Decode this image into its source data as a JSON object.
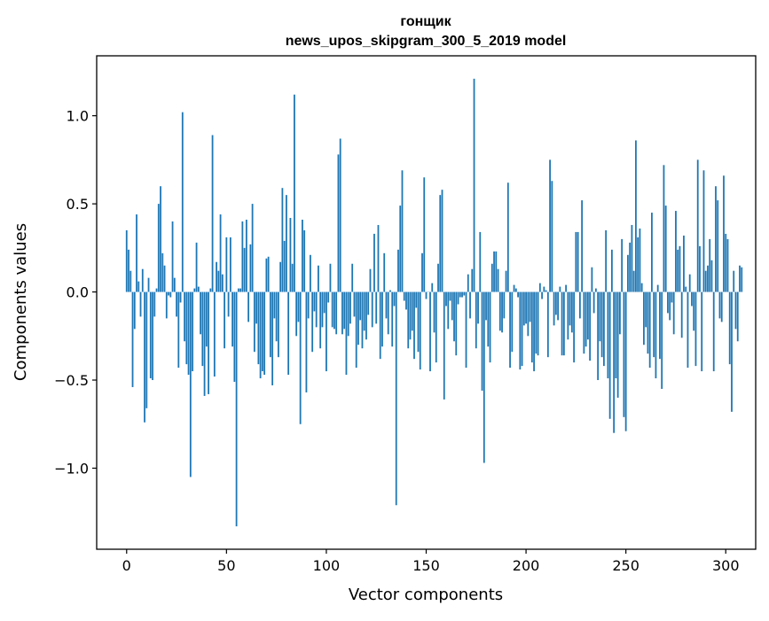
{
  "chart_data": {
    "type": "bar",
    "title_lines": [
      "гонщик",
      "news_upos_skipgram_300_5_2019 model"
    ],
    "xlabel": "Vector components",
    "ylabel": "Components values",
    "xlim": [
      -15,
      315
    ],
    "ylim": [
      -1.46,
      1.34
    ],
    "xticks": [
      0,
      50,
      100,
      150,
      200,
      250,
      300
    ],
    "xtick_labels": [
      "0",
      "50",
      "100",
      "150",
      "200",
      "250",
      "300"
    ],
    "yticks": [
      -1.0,
      -0.5,
      0.0,
      0.5,
      1.0
    ],
    "ytick_labels": [
      "−1.0",
      "−0.5",
      "0.0",
      "0.5",
      "1.0"
    ],
    "grid": false,
    "legend": "none",
    "bar_color": "#1f77b4",
    "values": [
      0.35,
      0.24,
      0.12,
      -0.54,
      -0.21,
      0.44,
      0.06,
      -0.14,
      0.13,
      -0.74,
      -0.66,
      0.08,
      -0.49,
      -0.5,
      -0.14,
      0.02,
      0.5,
      0.6,
      0.22,
      0.15,
      -0.15,
      -0.02,
      -0.03,
      0.4,
      0.08,
      -0.14,
      -0.43,
      -0.06,
      1.02,
      -0.28,
      -0.41,
      -0.47,
      -1.05,
      -0.45,
      0.02,
      0.28,
      0.03,
      -0.24,
      -0.42,
      -0.59,
      -0.31,
      -0.58,
      0.02,
      0.89,
      -0.48,
      0.17,
      0.12,
      0.44,
      0.1,
      -0.32,
      0.31,
      -0.14,
      0.31,
      -0.31,
      -0.51,
      -1.33,
      0.02,
      0.02,
      0.4,
      0.25,
      0.41,
      -0.17,
      0.27,
      0.5,
      -0.34,
      -0.18,
      -0.41,
      -0.49,
      -0.45,
      -0.47,
      0.19,
      0.2,
      -0.37,
      -0.53,
      -0.15,
      -0.28,
      -0.37,
      0.17,
      0.59,
      0.29,
      0.55,
      -0.47,
      0.42,
      0.16,
      1.12,
      -0.25,
      -0.17,
      -0.75,
      0.41,
      0.35,
      -0.57,
      -0.15,
      0.21,
      -0.34,
      -0.11,
      -0.2,
      0.15,
      -0.32,
      -0.2,
      -0.12,
      -0.45,
      -0.06,
      0.16,
      -0.2,
      -0.21,
      -0.24,
      0.78,
      0.87,
      -0.24,
      -0.21,
      -0.47,
      -0.25,
      -0.18,
      0.16,
      -0.14,
      -0.43,
      -0.3,
      -0.16,
      -0.32,
      -0.22,
      -0.27,
      -0.13,
      0.13,
      -0.2,
      0.33,
      -0.18,
      0.38,
      -0.38,
      -0.31,
      0.22,
      -0.15,
      -0.24,
      0.01,
      -0.31,
      -0.08,
      -1.21,
      0.24,
      0.49,
      0.69,
      -0.05,
      -0.1,
      -0.32,
      -0.27,
      -0.22,
      -0.38,
      -0.09,
      -0.34,
      -0.44,
      0.22,
      0.65,
      -0.04,
      0.0,
      -0.45,
      0.05,
      -0.23,
      -0.4,
      0.16,
      0.55,
      0.58,
      -0.61,
      -0.08,
      -0.21,
      -0.05,
      -0.16,
      -0.28,
      -0.36,
      -0.07,
      -0.03,
      -0.03,
      -0.02,
      -0.43,
      0.1,
      -0.15,
      0.13,
      1.21,
      -0.32,
      -0.18,
      0.34,
      -0.56,
      -0.97,
      -0.16,
      -0.31,
      -0.4,
      0.16,
      0.23,
      0.23,
      0.13,
      -0.22,
      -0.23,
      -0.15,
      0.12,
      0.62,
      -0.43,
      -0.34,
      0.04,
      0.02,
      -0.03,
      -0.44,
      -0.42,
      -0.19,
      -0.18,
      -0.25,
      -0.17,
      -0.4,
      -0.45,
      -0.35,
      -0.36,
      0.05,
      -0.04,
      0.03,
      0.01,
      -0.37,
      0.75,
      0.63,
      -0.19,
      -0.13,
      -0.16,
      0.03,
      -0.36,
      -0.36,
      0.04,
      -0.27,
      -0.19,
      -0.23,
      -0.4,
      0.34,
      0.34,
      -0.15,
      0.52,
      -0.35,
      -0.31,
      -0.27,
      -0.39,
      0.14,
      -0.12,
      0.02,
      -0.5,
      -0.28,
      -0.37,
      -0.42,
      0.35,
      -0.49,
      -0.72,
      0.24,
      -0.8,
      -0.49,
      -0.6,
      -0.24,
      0.3,
      -0.71,
      -0.79,
      0.21,
      0.28,
      0.38,
      0.12,
      0.86,
      0.31,
      0.36,
      0.05,
      -0.3,
      -0.2,
      -0.35,
      -0.43,
      0.45,
      -0.37,
      -0.49,
      0.04,
      -0.38,
      -0.55,
      0.72,
      0.49,
      -0.12,
      -0.16,
      -0.06,
      -0.24,
      0.46,
      0.24,
      0.26,
      -0.26,
      0.32,
      0.03,
      -0.43,
      0.1,
      -0.08,
      -0.22,
      -0.42,
      0.75,
      0.26,
      -0.45,
      0.69,
      0.12,
      0.15,
      0.3,
      0.18,
      -0.45,
      0.6,
      0.52,
      -0.15,
      -0.17,
      0.66,
      0.33,
      0.3,
      -0.41,
      -0.68,
      0.12,
      -0.21,
      -0.28,
      0.15,
      0.14
    ]
  }
}
